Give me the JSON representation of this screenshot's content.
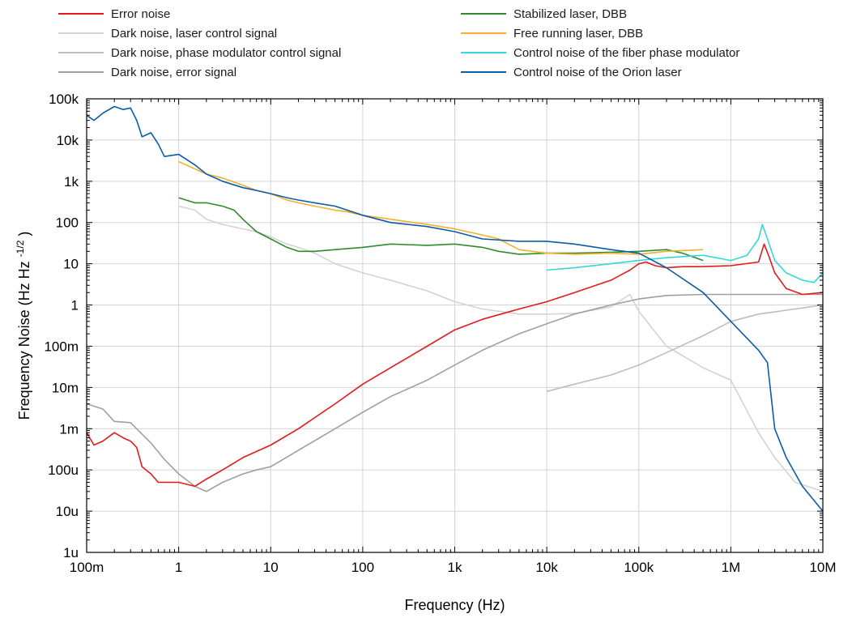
{
  "chart_data": {
    "type": "line",
    "xlabel": "Frequency (Hz)",
    "ylabel_main": "Frequency Noise (Hz Hz",
    "ylabel_sup": "-1/2",
    "ylabel_end": ")",
    "x_scale": "log",
    "y_scale": "log",
    "xlim": [
      0.1,
      10000000
    ],
    "ylim": [
      1e-06,
      100000
    ],
    "grid": true,
    "legend_position": "top",
    "x_ticks": [
      {
        "value": 0.1,
        "label": "100m"
      },
      {
        "value": 1,
        "label": "1"
      },
      {
        "value": 10,
        "label": "10"
      },
      {
        "value": 100,
        "label": "100"
      },
      {
        "value": 1000,
        "label": "1k"
      },
      {
        "value": 10000,
        "label": "10k"
      },
      {
        "value": 100000,
        "label": "100k"
      },
      {
        "value": 1000000,
        "label": "1M"
      },
      {
        "value": 10000000,
        "label": "10M"
      }
    ],
    "y_ticks": [
      {
        "value": 1e-06,
        "label": "1u"
      },
      {
        "value": 1e-05,
        "label": "10u"
      },
      {
        "value": 0.0001,
        "label": "100u"
      },
      {
        "value": 0.001,
        "label": "1m"
      },
      {
        "value": 0.01,
        "label": "10m"
      },
      {
        "value": 0.1,
        "label": "100m"
      },
      {
        "value": 1,
        "label": "1"
      },
      {
        "value": 10,
        "label": "10"
      },
      {
        "value": 100,
        "label": "100"
      },
      {
        "value": 1000,
        "label": "1k"
      },
      {
        "value": 10000,
        "label": "10k"
      },
      {
        "value": 100000,
        "label": "100k"
      }
    ],
    "series": [
      {
        "name": "Dark noise, laser control signal",
        "color": "#d3d3d3",
        "x": [
          1,
          1.5,
          2,
          3,
          5,
          7,
          10,
          15,
          20,
          30,
          50,
          100,
          200,
          500,
          1000,
          2000,
          5000,
          10000,
          20000,
          50000,
          80000,
          100000,
          200000,
          500000,
          1000000,
          2000000,
          3000000,
          5000000,
          10000000
        ],
        "y": [
          250,
          200,
          120,
          90,
          70,
          60,
          45,
          30,
          25,
          18,
          10,
          6,
          4,
          2.2,
          1.2,
          0.8,
          0.6,
          0.6,
          0.62,
          0.9,
          1.8,
          0.7,
          0.1,
          0.03,
          0.015,
          0.0008,
          0.0002,
          5e-05,
          3e-05
        ]
      },
      {
        "name": "Dark noise, phase modulator control signal",
        "color": "#bdbdbd",
        "x": [
          10000,
          20000,
          50000,
          100000,
          200000,
          500000,
          1000000,
          2000000,
          5000000,
          10000000
        ],
        "y": [
          0.008,
          0.012,
          0.02,
          0.035,
          0.07,
          0.18,
          0.4,
          0.6,
          0.8,
          1
        ]
      },
      {
        "name": "Dark noise, error signal",
        "color": "#a0a0a0",
        "x": [
          0.1,
          0.15,
          0.2,
          0.3,
          0.5,
          0.7,
          1,
          1.5,
          2,
          3,
          5,
          7,
          10,
          20,
          50,
          100,
          200,
          500,
          1000,
          2000,
          5000,
          10000,
          20000,
          50000,
          100000,
          200000,
          500000,
          1000000,
          2000000,
          5000000,
          10000000
        ],
        "y": [
          0.004,
          0.003,
          0.0015,
          0.0014,
          0.00045,
          0.00018,
          8e-05,
          4e-05,
          3e-05,
          5e-05,
          8e-05,
          0.0001,
          0.00012,
          0.0003,
          0.001,
          0.0025,
          0.006,
          0.015,
          0.035,
          0.08,
          0.2,
          0.35,
          0.6,
          1,
          1.4,
          1.7,
          1.8,
          1.8,
          1.8,
          1.8,
          1.8
        ]
      },
      {
        "name": "Error noise",
        "color": "#e31a1c",
        "x": [
          0.1,
          0.12,
          0.15,
          0.2,
          0.25,
          0.3,
          0.35,
          0.4,
          0.5,
          0.6,
          0.7,
          1,
          1.5,
          2,
          3,
          5,
          10,
          20,
          50,
          100,
          200,
          500,
          1000,
          2000,
          5000,
          10000,
          20000,
          50000,
          80000,
          100000,
          120000,
          150000,
          200000,
          300000,
          500000,
          1000000,
          2000000,
          2300000,
          2600000,
          3000000,
          4000000,
          6000000,
          10000000
        ],
        "y": [
          0.0008,
          0.0004,
          0.0005,
          0.0008,
          0.0006,
          0.0005,
          0.00035,
          0.00012,
          8e-05,
          5e-05,
          5e-05,
          5e-05,
          4e-05,
          6e-05,
          0.0001,
          0.0002,
          0.0004,
          0.001,
          0.004,
          0.012,
          0.03,
          0.1,
          0.25,
          0.45,
          0.8,
          1.2,
          2,
          4,
          7,
          10,
          11,
          9,
          8,
          8.5,
          8.5,
          9,
          11,
          30,
          15,
          6,
          2.5,
          1.8,
          2
        ]
      },
      {
        "name": "Stabilized laser, DBB",
        "color": "#2e8b2e",
        "x": [
          1,
          1.5,
          2,
          3,
          4,
          5,
          7,
          10,
          15,
          20,
          30,
          50,
          100,
          200,
          500,
          1000,
          2000,
          3000,
          5000,
          10000,
          20000,
          50000,
          100000,
          200000,
          300000,
          500000
        ],
        "y": [
          400,
          300,
          300,
          250,
          200,
          120,
          60,
          40,
          25,
          20,
          20,
          22,
          25,
          30,
          28,
          30,
          25,
          20,
          17,
          18,
          18,
          19,
          20,
          22,
          18,
          12
        ]
      },
      {
        "name": "Free running laser, DBB",
        "color": "#f2b12b",
        "x": [
          1,
          1.5,
          2,
          3,
          5,
          7,
          10,
          15,
          20,
          30,
          50,
          70,
          100,
          200,
          500,
          1000,
          2000,
          3000,
          5000,
          10000,
          20000,
          50000,
          100000,
          200000,
          500000
        ],
        "y": [
          3000,
          2000,
          1500,
          1200,
          800,
          600,
          500,
          350,
          300,
          250,
          200,
          180,
          150,
          120,
          90,
          70,
          50,
          40,
          22,
          18,
          17,
          18,
          17,
          20,
          22
        ]
      },
      {
        "name": "Control noise of the fiber phase modulator",
        "color": "#36d7d7",
        "x": [
          10000,
          20000,
          50000,
          100000,
          200000,
          500000,
          1000000,
          1500000,
          2000000,
          2200000,
          2500000,
          3000000,
          4000000,
          6000000,
          8000000,
          10000000
        ],
        "y": [
          7,
          8,
          10,
          12,
          14,
          16,
          12,
          16,
          40,
          90,
          40,
          12,
          6,
          4,
          3.5,
          6
        ]
      },
      {
        "name": "Control noise of the Orion laser",
        "color": "#0a5ca8",
        "x": [
          0.1,
          0.12,
          0.15,
          0.2,
          0.25,
          0.3,
          0.35,
          0.4,
          0.5,
          0.6,
          0.7,
          1,
          1.5,
          2,
          3,
          5,
          7,
          10,
          15,
          20,
          30,
          50,
          100,
          200,
          500,
          1000,
          2000,
          5000,
          10000,
          20000,
          50000,
          100000,
          200000,
          500000,
          1000000,
          2000000,
          2500000,
          3000000,
          4000000,
          6000000,
          10000000
        ],
        "y": [
          40000,
          30000,
          45000,
          65000,
          55000,
          60000,
          30000,
          12000,
          15000,
          8000,
          4000,
          4500,
          2500,
          1500,
          1000,
          700,
          600,
          500,
          400,
          350,
          300,
          250,
          150,
          100,
          80,
          60,
          40,
          35,
          35,
          30,
          22,
          18,
          8,
          2,
          0.4,
          0.08,
          0.04,
          0.001,
          0.0002,
          4e-05,
          1e-05
        ]
      }
    ],
    "legend_order": [
      3,
      0,
      1,
      2,
      4,
      5,
      6,
      7
    ]
  }
}
